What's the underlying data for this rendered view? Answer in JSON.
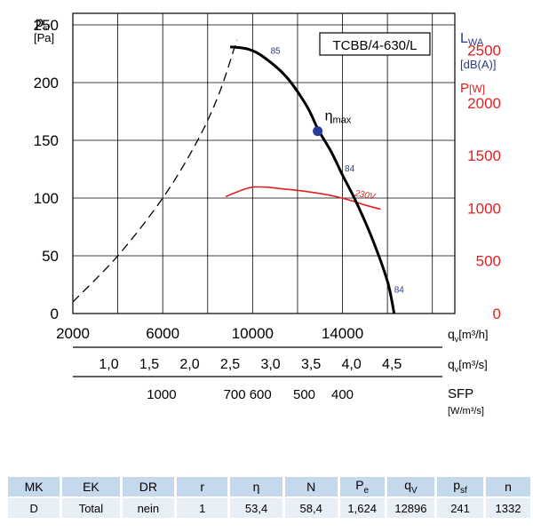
{
  "chart_data": {
    "type": "line",
    "model_label": "TCBB/4-630/L",
    "left_axis": {
      "label": "p",
      "label_sub": "sf",
      "unit": "[Pa]",
      "range": [
        0,
        260
      ],
      "ticks": [
        "0",
        "50",
        "100",
        "150",
        "200",
        "250"
      ],
      "tick_values": [
        0,
        50,
        100,
        150,
        200,
        250
      ]
    },
    "right_axis": {
      "lwa_label": "L",
      "lwa_sub": "WA",
      "lwa_unit": "[dB(A)]",
      "power_label": "P",
      "power_unit": "[W]",
      "range": [
        0,
        2850
      ],
      "ticks": [
        "0",
        "500",
        "1000",
        "1500",
        "2000",
        "2500"
      ],
      "tick_values": [
        0,
        500,
        1000,
        1500,
        2000,
        2500
      ],
      "color": "#e02020"
    },
    "x_axis_m3h": {
      "label": "q",
      "label_sub": "v",
      "unit": "[m³/h]",
      "range": [
        2000,
        19000
      ],
      "ticks": [
        "2000",
        "6000",
        "10000",
        "14000"
      ],
      "tick_values": [
        2000,
        6000,
        10000,
        14000
      ]
    },
    "x_axis_m3s": {
      "label": "q",
      "label_sub": "v",
      "unit": "[m³/s]",
      "ticks": [
        "1,0",
        "1,5",
        "2,0",
        "2,5",
        "3,0",
        "3,5",
        "4,0",
        "4,5"
      ],
      "tick_values": [
        1.0,
        1.5,
        2.0,
        2.5,
        3.0,
        3.5,
        4.0,
        4.5
      ]
    },
    "x_axis_sfp": {
      "label": "SFP",
      "unit": "[W/m³/s]",
      "ticks": [
        "1000",
        "700",
        "600",
        "500",
        "400"
      ],
      "tick_m3h": [
        5950,
        9200,
        10350,
        12300,
        14000
      ]
    },
    "series": [
      {
        "id": "pressure-unstable",
        "style": "dashed",
        "color": "#000000",
        "x": [
          2000,
          4000,
          6000,
          7500,
          8500,
          9300
        ],
        "y": [
          10,
          50,
          100,
          148,
          190,
          237
        ]
      },
      {
        "id": "pressure",
        "style": "solid",
        "color": "#000000",
        "x": [
          9000,
          9800,
          10500,
          11500,
          12400,
          12900,
          13500,
          14000,
          14600,
          15300,
          16000,
          16300
        ],
        "y": [
          231,
          229,
          222,
          205,
          180,
          160,
          140,
          120,
          97,
          66,
          28,
          0
        ]
      },
      {
        "id": "power",
        "name": "230V",
        "style": "solid",
        "color": "#e02020",
        "axis": "right",
        "x": [
          8800,
          9500,
          10000,
          10600,
          11500,
          12500,
          13500,
          14500,
          15000,
          15700
        ],
        "y": [
          1110,
          1170,
          1200,
          1200,
          1180,
          1155,
          1120,
          1065,
          1030,
          990
        ]
      }
    ],
    "eta_max": {
      "label": "η",
      "label_sub": "max",
      "x": 12896,
      "y": 158
    },
    "noise_labels": [
      {
        "text": "85",
        "x": 10800,
        "y": 225
      },
      {
        "text": "84",
        "x": 14100,
        "y": 123
      },
      {
        "text": "84",
        "x": 16300,
        "y": 18
      }
    ],
    "grid": true
  },
  "table": {
    "headers": [
      "MK",
      "EK",
      "DR",
      "r",
      "η",
      "N",
      "P",
      "q",
      "p",
      "n"
    ],
    "header_subs": [
      "",
      "",
      "",
      "",
      "",
      "",
      "e",
      "V",
      "sf",
      ""
    ],
    "row": [
      "D",
      "Total",
      "nein",
      "1",
      "53,4",
      "58,4",
      "1,624",
      "12896",
      "241",
      "1332"
    ]
  }
}
